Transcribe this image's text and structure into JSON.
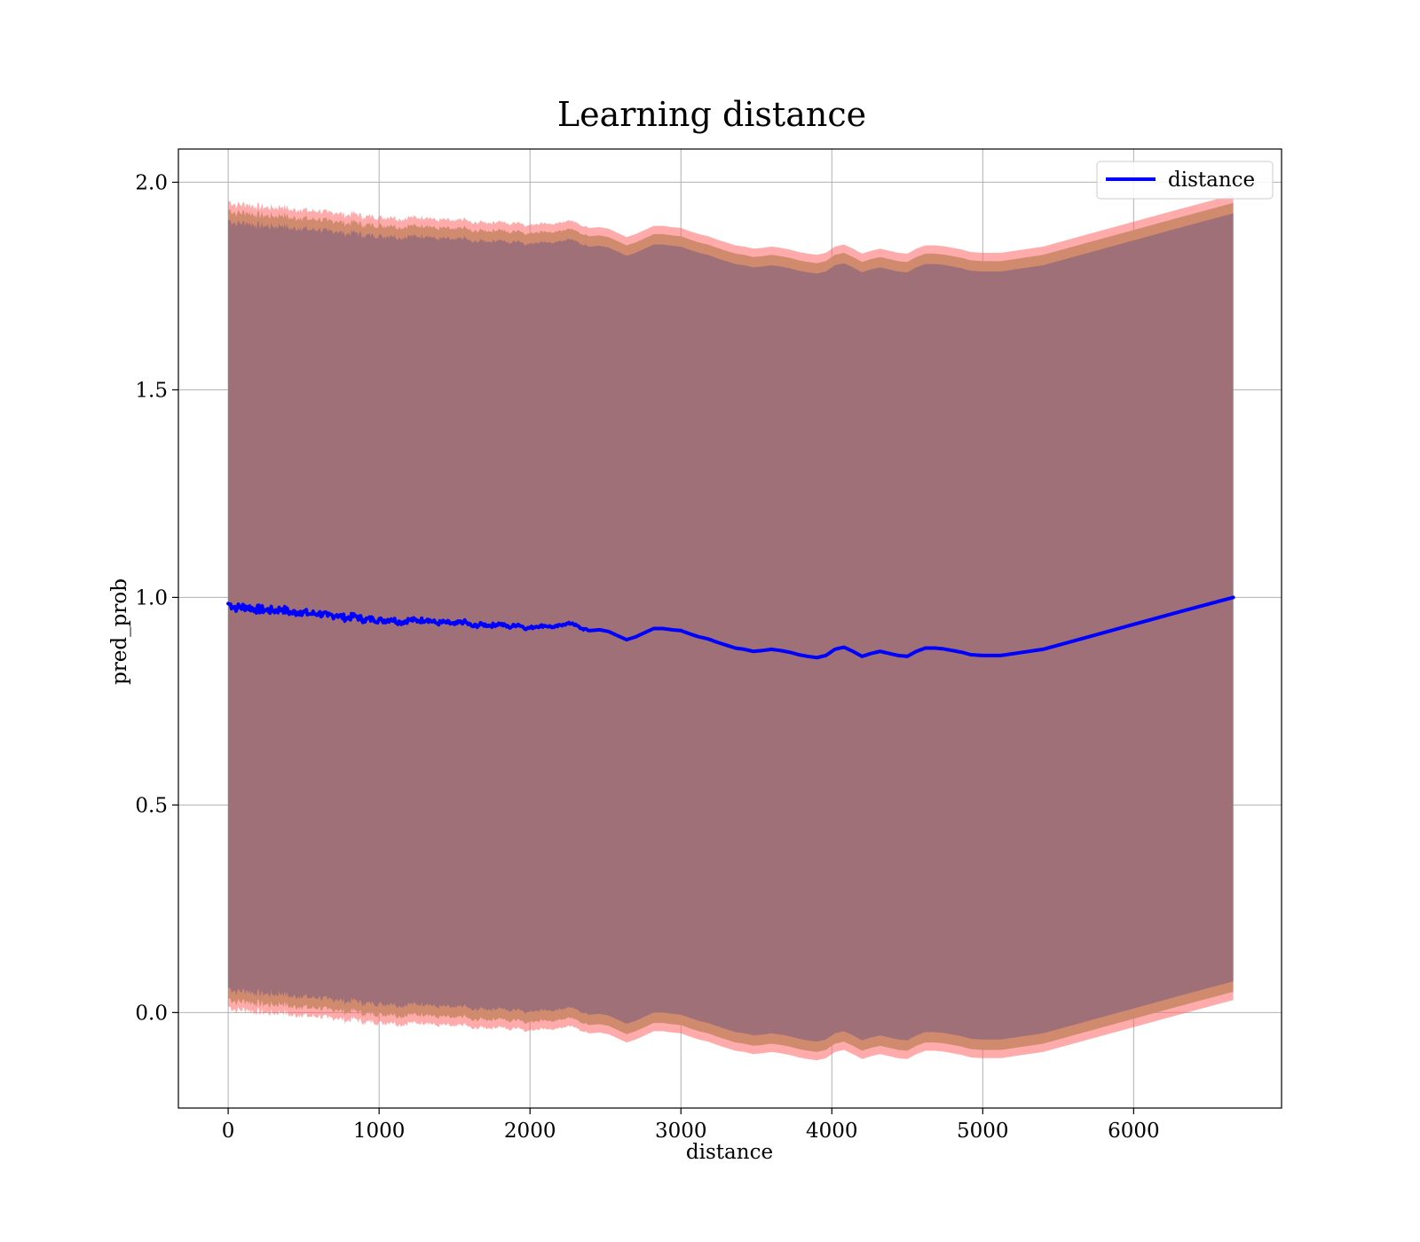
{
  "chart_data": {
    "type": "line",
    "title": "Learning distance",
    "xlabel": "distance",
    "ylabel": "pred_prob",
    "xlim": [
      -330,
      6980
    ],
    "ylim": [
      -0.23,
      2.08
    ],
    "xticks": [
      0,
      1000,
      2000,
      3000,
      4000,
      5000,
      6000
    ],
    "yticks": [
      0.0,
      0.5,
      1.0,
      1.5,
      2.0
    ],
    "grid": true,
    "legend_position": "top-right",
    "colors": {
      "line": "#0000ff",
      "band_outer": "#ff6666",
      "band_middle": "#d08a6e",
      "band_inner": "#a07078"
    },
    "series": [
      {
        "name": "distance",
        "x": [
          0,
          60,
          120,
          180,
          240,
          300,
          360,
          420,
          480,
          540,
          600,
          660,
          720,
          780,
          840,
          900,
          960,
          1020,
          1080,
          1140,
          1200,
          1260,
          1320,
          1380,
          1440,
          1500,
          1560,
          1620,
          1680,
          1740,
          1800,
          1860,
          1920,
          1980,
          2040,
          2100,
          2160,
          2220,
          2280,
          2340,
          2400,
          2460,
          2520,
          2580,
          2640,
          2700,
          2760,
          2820,
          2880,
          2940,
          3000,
          3060,
          3120,
          3180,
          3240,
          3300,
          3360,
          3420,
          3480,
          3540,
          3600,
          3660,
          3720,
          3780,
          3840,
          3900,
          3960,
          4020,
          4080,
          4140,
          4200,
          4260,
          4320,
          4380,
          4440,
          4500,
          4560,
          4620,
          4680,
          4740,
          4800,
          4860,
          4920,
          5000,
          5120,
          5400,
          5700,
          6000,
          6300,
          6660
        ],
        "y": [
          0.985,
          0.975,
          0.978,
          0.972,
          0.97,
          0.968,
          0.972,
          0.962,
          0.966,
          0.96,
          0.962,
          0.955,
          0.958,
          0.95,
          0.955,
          0.946,
          0.948,
          0.944,
          0.948,
          0.94,
          0.946,
          0.944,
          0.947,
          0.938,
          0.94,
          0.935,
          0.942,
          0.93,
          0.935,
          0.932,
          0.937,
          0.928,
          0.935,
          0.925,
          0.93,
          0.932,
          0.928,
          0.935,
          0.938,
          0.925,
          0.92,
          0.922,
          0.918,
          0.908,
          0.898,
          0.905,
          0.915,
          0.925,
          0.925,
          0.922,
          0.92,
          0.912,
          0.905,
          0.9,
          0.892,
          0.885,
          0.878,
          0.875,
          0.87,
          0.872,
          0.875,
          0.872,
          0.868,
          0.862,
          0.858,
          0.855,
          0.86,
          0.875,
          0.88,
          0.87,
          0.858,
          0.865,
          0.87,
          0.865,
          0.86,
          0.858,
          0.87,
          0.878,
          0.878,
          0.876,
          0.872,
          0.868,
          0.862,
          0.86,
          0.86,
          0.875,
          0.905,
          0.935,
          0.965,
          1.0
        ]
      }
    ]
  }
}
